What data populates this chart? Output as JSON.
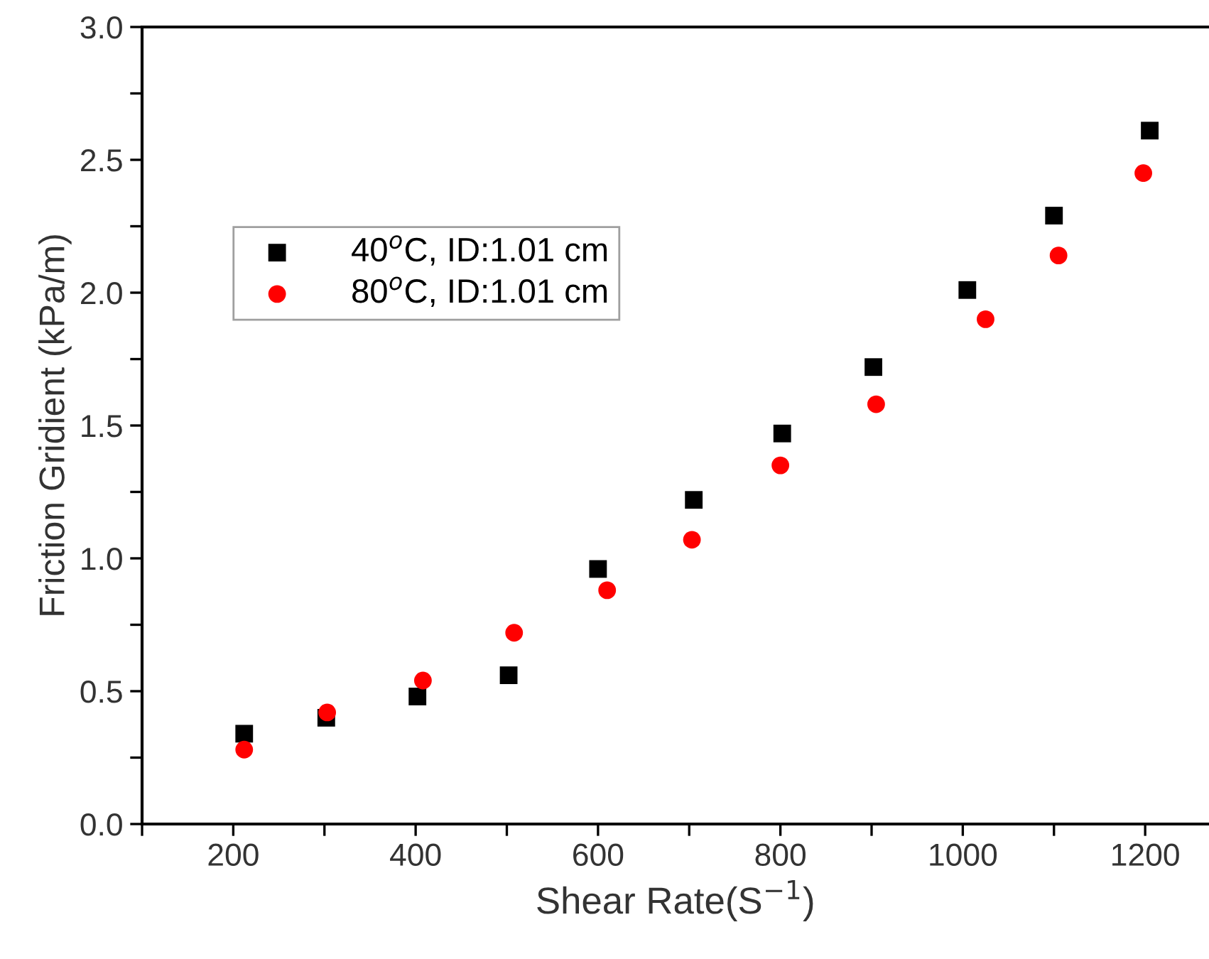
{
  "chart_data": {
    "type": "scatter",
    "xlabel": "Shear Rate(S$^{−1}$)",
    "ylabel": "Friction Gridient (kPa/m)",
    "xlim": [
      100,
      1270
    ],
    "ylim": [
      0,
      3.0
    ],
    "xticks": [
      {
        "value": 100,
        "label": null
      },
      200,
      {
        "value": 300,
        "label": null
      },
      400,
      {
        "value": 500,
        "label": null
      },
      600,
      {
        "value": 700,
        "label": null
      },
      800,
      {
        "value": 900,
        "label": null
      },
      1000,
      {
        "value": 1100,
        "label": null
      },
      1200
    ],
    "yticks": [
      {
        "value": 0,
        "label": "0.0"
      },
      {
        "value": 0.25,
        "label": null
      },
      0.5,
      {
        "value": 0.75,
        "label": null
      },
      {
        "value": 1.0,
        "label": "1.0"
      },
      {
        "value": 1.25,
        "label": null
      },
      1.5,
      {
        "value": 1.75,
        "label": null
      },
      {
        "value": 2.0,
        "label": "2.0"
      },
      {
        "value": 2.25,
        "label": null
      },
      2.5,
      {
        "value": 2.75,
        "label": null
      },
      {
        "value": 3.0,
        "label": "3.0"
      }
    ],
    "grid": false,
    "legend": "top left",
    "series": [
      {
        "name": "40$^{o}$C, ID:1.01 cm",
        "color": "#000000",
        "marker": "square",
        "x": [
          212,
          302,
          402,
          502,
          600,
          705,
          802,
          902,
          1005,
          1100,
          1205
        ],
        "values": [
          0.34,
          0.4,
          0.48,
          0.56,
          0.96,
          1.22,
          1.47,
          1.72,
          2.01,
          2.29,
          2.61
        ]
      },
      {
        "name": "80$^{o}$C, ID:1.01 cm",
        "color": "#ff0000",
        "marker": "circle",
        "x": [
          212,
          303,
          408,
          508,
          610,
          703,
          800,
          905,
          1025,
          1105,
          1198
        ],
        "values": [
          0.28,
          0.42,
          0.54,
          0.72,
          0.88,
          1.07,
          1.35,
          1.58,
          1.9,
          2.14,
          2.45
        ]
      }
    ]
  }
}
